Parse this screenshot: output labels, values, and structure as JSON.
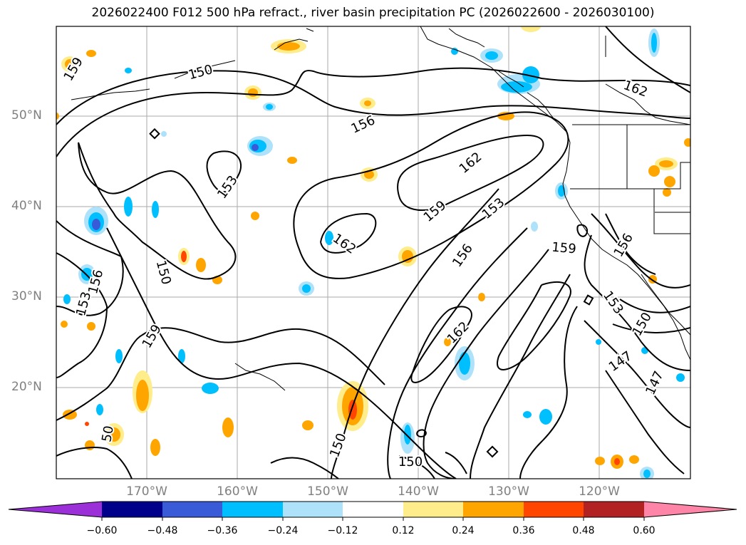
{
  "title": "2026022400 F012 500 hPa refract., river basin precipitation PC (2026022600 - 2026030100)",
  "axes": {
    "lat_labels": [
      "50°N",
      "40°N",
      "30°N",
      "20°N"
    ],
    "lon_labels": [
      "170°W",
      "160°W",
      "150°W",
      "140°W",
      "130°W",
      "120°W"
    ],
    "gridlines": true
  },
  "contours": {
    "labels": [
      "159",
      "150",
      "156",
      "153",
      "162",
      "159",
      "153",
      "162",
      "156",
      "150",
      "156",
      "153",
      "159",
      "50",
      "150",
      "162",
      "159",
      "156",
      "153",
      "150",
      "147",
      "147",
      "162"
    ]
  },
  "colorbar": {
    "tick_labels": [
      "−0.60",
      "−0.48",
      "−0.36",
      "−0.24",
      "−0.12",
      "0.12",
      "0.24",
      "0.36",
      "0.48",
      "0.60"
    ],
    "colors": [
      "#9b30d8",
      "#00008b",
      "#3a5bd8",
      "#00bfff",
      "#aee2fa",
      "#ffffff",
      "#ffec8a",
      "#ffa500",
      "#ff4500",
      "#b22222",
      "#ff85a8"
    ]
  }
}
